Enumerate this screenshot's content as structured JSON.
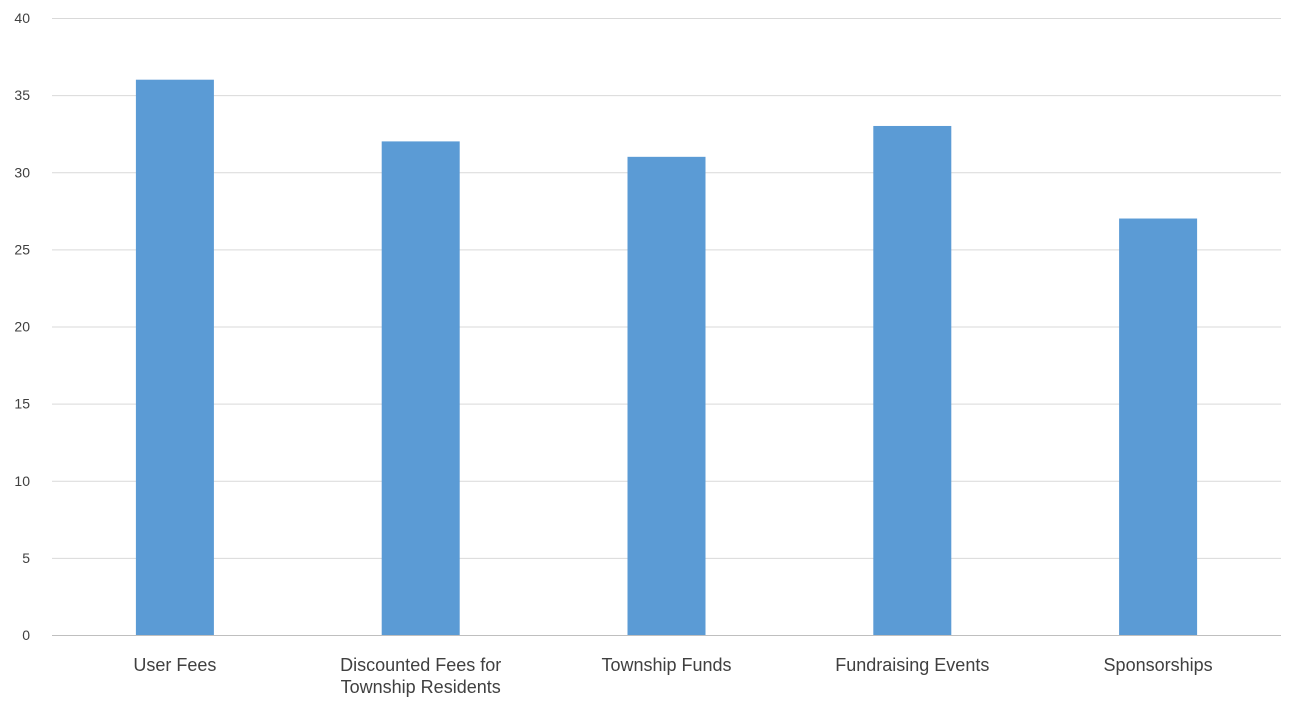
{
  "chart_data": {
    "type": "bar",
    "title": "",
    "xlabel": "",
    "ylabel": "",
    "categories": [
      [
        "User Fees"
      ],
      [
        "Discounted Fees for",
        "Township Residents"
      ],
      [
        "Township Funds"
      ],
      [
        "Fundraising Events"
      ],
      [
        "Sponsorships"
      ]
    ],
    "values": [
      36,
      32,
      31,
      33,
      27
    ],
    "ylim": [
      0,
      40
    ],
    "yticks": [
      0,
      5,
      10,
      15,
      20,
      25,
      30,
      35,
      40
    ],
    "grid": true,
    "legend": "none",
    "colors": {
      "bar": "#5b9bd5",
      "grid": "#d9d9d9",
      "axis": "#bfbfbf",
      "text": "#404040"
    }
  }
}
